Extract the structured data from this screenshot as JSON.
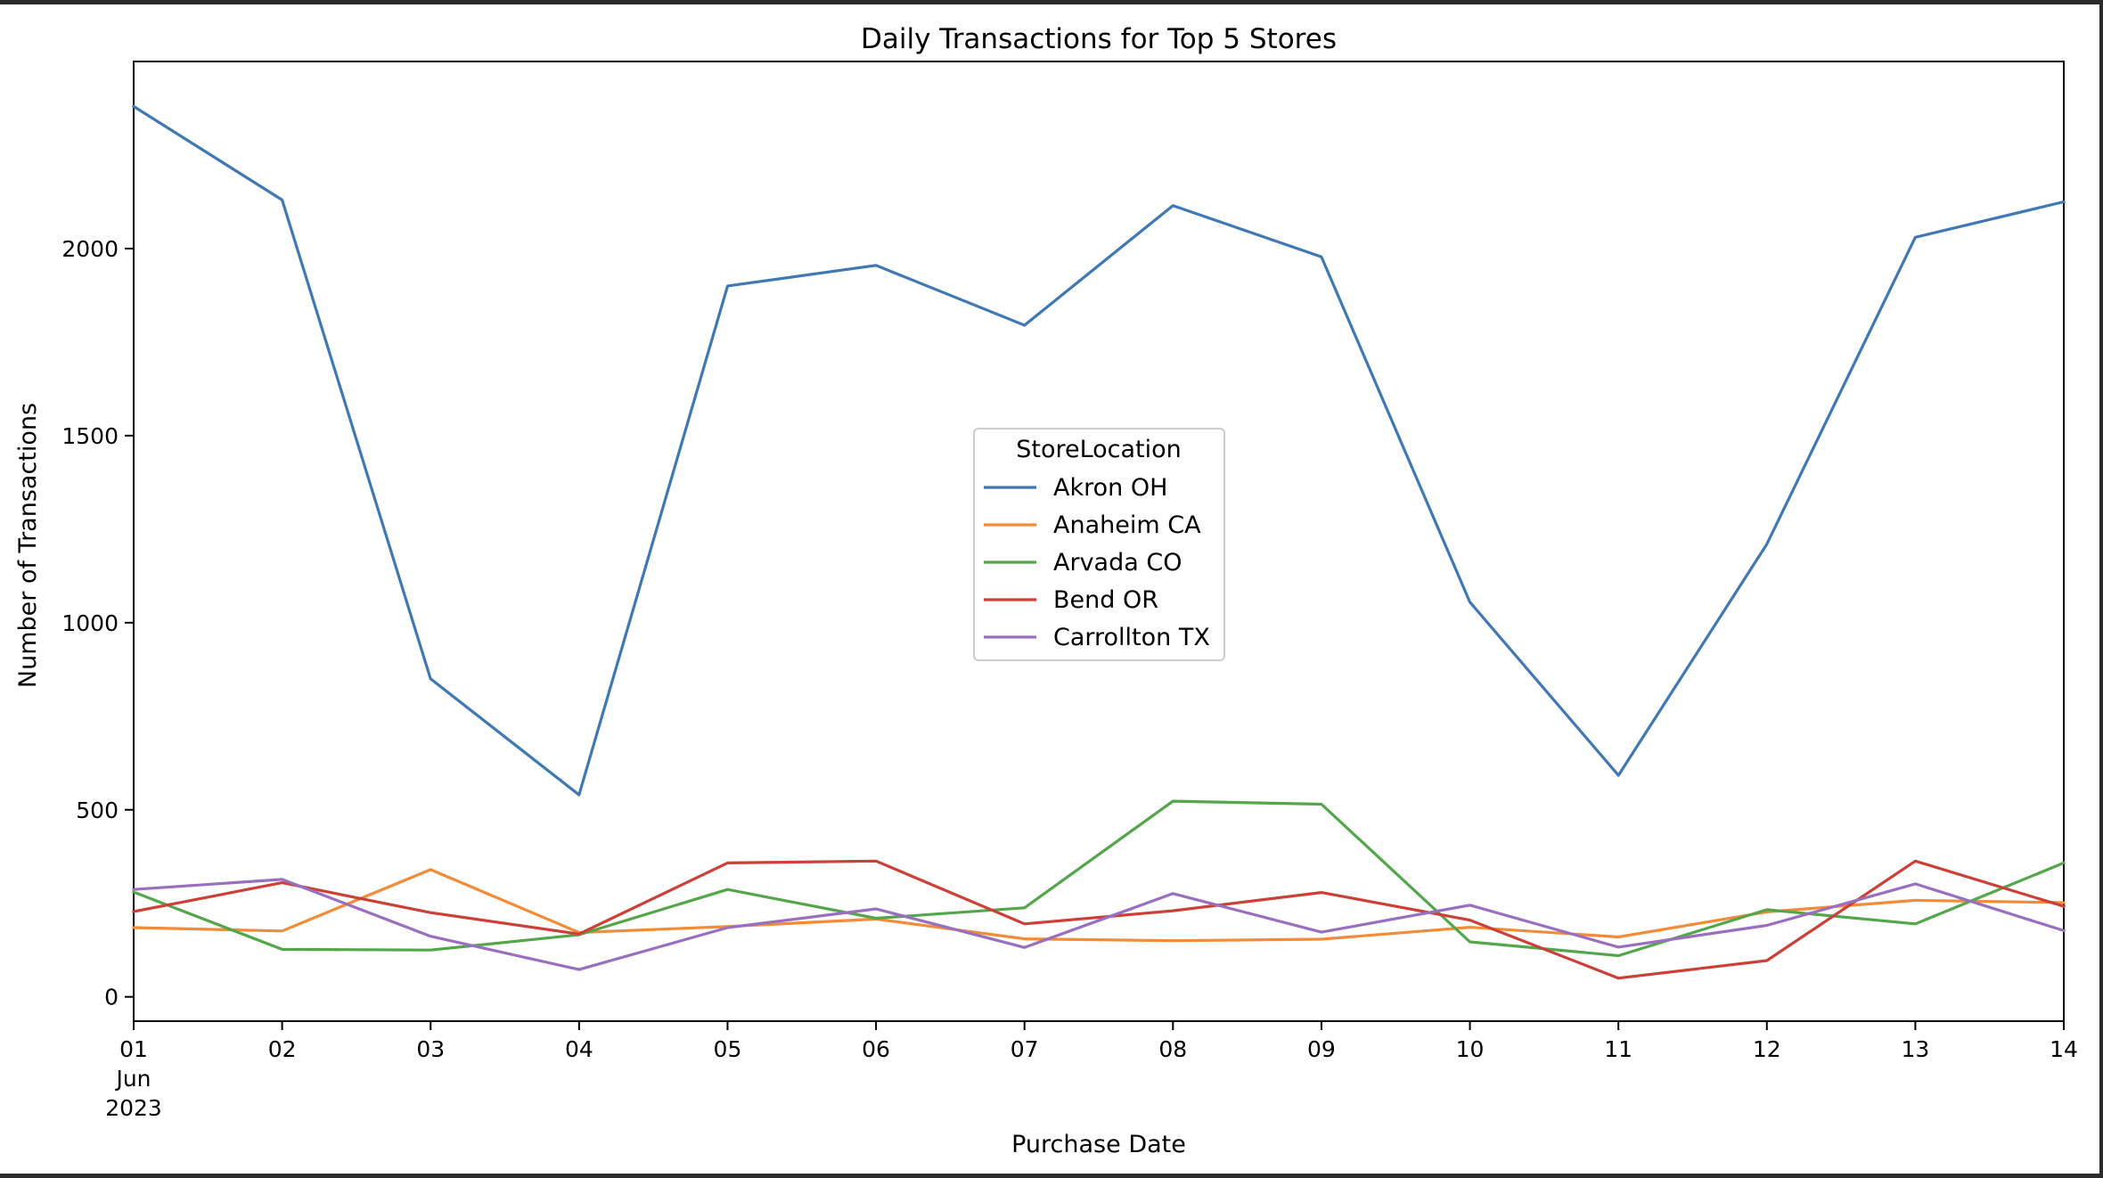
{
  "chart_data": {
    "type": "line",
    "title": "Daily Transactions for Top 5 Stores",
    "xlabel": "Purchase Date",
    "ylabel": "Number of Transactions",
    "x": [
      "2023-06-01",
      "2023-06-02",
      "2023-06-03",
      "2023-06-04",
      "2023-06-05",
      "2023-06-06",
      "2023-06-07",
      "2023-06-08",
      "2023-06-09",
      "2023-06-10",
      "2023-06-11",
      "2023-06-12",
      "2023-06-13",
      "2023-06-14"
    ],
    "x_tick_labels": [
      "01",
      "02",
      "03",
      "04",
      "05",
      "06",
      "07",
      "08",
      "09",
      "10",
      "11",
      "12",
      "13",
      "14"
    ],
    "x_tick_sub_labels": [
      "Jun",
      "2023"
    ],
    "xlim": [
      "2023-06-01",
      "2023-06-14"
    ],
    "ylim": [
      -65,
      2500
    ],
    "y_ticks": [
      0,
      500,
      1000,
      1500,
      2000
    ],
    "grid": false,
    "legend": {
      "title": "StoreLocation",
      "placement": "center"
    },
    "series": [
      {
        "name": "Akron OH",
        "color": "#4078b3",
        "values": [
          2380,
          2130,
          850,
          540,
          1900,
          1955,
          1795,
          2115,
          1978,
          1055,
          592,
          1210,
          2030,
          2125
        ]
      },
      {
        "name": "Anaheim CA",
        "color": "#f28c38",
        "values": [
          185,
          176,
          340,
          172,
          188,
          208,
          155,
          150,
          154,
          186,
          160,
          227,
          258,
          252
        ]
      },
      {
        "name": "Arvada CO",
        "color": "#54a64a",
        "values": [
          280,
          127,
          125,
          166,
          287,
          210,
          238,
          523,
          515,
          147,
          110,
          233,
          195,
          358
        ]
      },
      {
        "name": "Bend OR",
        "color": "#cc4038",
        "values": [
          228,
          305,
          225,
          168,
          358,
          363,
          195,
          230,
          279,
          205,
          50,
          97,
          363,
          242
        ]
      },
      {
        "name": "Carrollton TX",
        "color": "#9a6fbf",
        "values": [
          287,
          314,
          162,
          73,
          185,
          235,
          132,
          276,
          173,
          245,
          133,
          191,
          302,
          177
        ]
      }
    ]
  }
}
